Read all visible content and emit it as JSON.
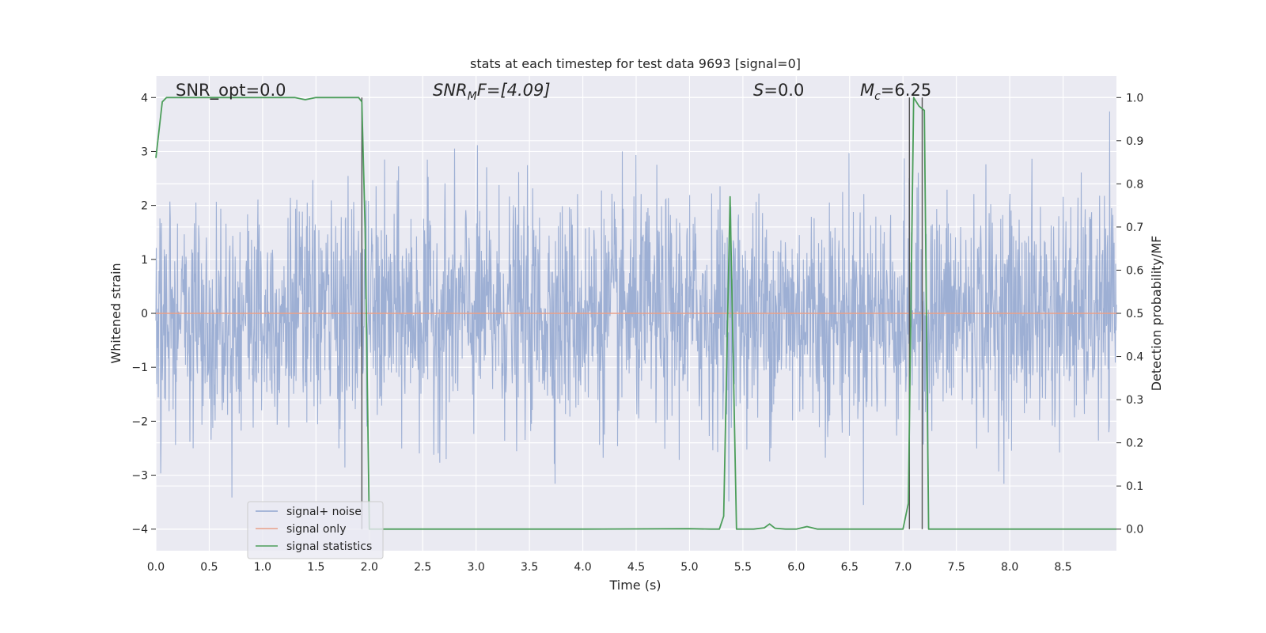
{
  "chart_data": {
    "type": "line",
    "title": "stats at each timestep for test data 9693 [signal=0]",
    "xlabel": "Time (s)",
    "ylabel": "Whitened strain",
    "y2label": "Detection probability/MF",
    "xlim": [
      0.0,
      9.0
    ],
    "ylim": [
      -4.4,
      4.4
    ],
    "y2lim": [
      -0.05,
      1.05
    ],
    "x_ticks": [
      "0.0",
      "0.5",
      "1.0",
      "1.5",
      "2.0",
      "2.5",
      "3.0",
      "3.5",
      "4.0",
      "4.5",
      "5.0",
      "5.5",
      "6.0",
      "6.5",
      "7.0",
      "7.5",
      "8.0",
      "8.5"
    ],
    "y_ticks": [
      "4",
      "3",
      "2",
      "1",
      "0",
      "−1",
      "−2",
      "−3",
      "−4"
    ],
    "y2_ticks": [
      "1.0",
      "0.9",
      "0.8",
      "0.7",
      "0.6",
      "0.5",
      "0.4",
      "0.3",
      "0.2",
      "0.1",
      "0.0"
    ],
    "grid": true,
    "legend_position": "lower-left",
    "annotations": {
      "snr_opt": "SNR_opt=0.0",
      "snr_mf_sym": "SNR",
      "snr_mf_sub": "M",
      "snr_mf_rest": "F=[4.09]",
      "s_sym": "S",
      "s_rest": "=0.0",
      "mc_sym": "M",
      "mc_sub": "c",
      "mc_rest": "=6.25"
    },
    "vlines_x": [
      1.93,
      7.06,
      7.18
    ],
    "series": [
      {
        "name": "signal+ noise",
        "color": "#8fa5cf",
        "note": "dense noise trace, amplitude mostly within ±2.5, peaks near ±4"
      },
      {
        "name": "signal only",
        "color": "#e8a08a",
        "values_constant": 0.0
      },
      {
        "name": "signal statistics",
        "color": "#4c9e5a",
        "axis": "right",
        "x": [
          0.0,
          0.06,
          0.1,
          0.2,
          0.5,
          1.0,
          1.2,
          1.3,
          1.4,
          1.5,
          1.7,
          1.8,
          1.9,
          1.93,
          1.96,
          2.0,
          2.3,
          3.0,
          4.0,
          5.0,
          5.2,
          5.28,
          5.32,
          5.38,
          5.44,
          5.5,
          5.6,
          5.7,
          5.75,
          5.8,
          5.9,
          6.0,
          6.1,
          6.2,
          7.0,
          7.05,
          7.1,
          7.15,
          7.2,
          7.24,
          7.5,
          8.0,
          9.0
        ],
        "y": [
          0.86,
          0.99,
          1.0,
          1.0,
          1.0,
          1.0,
          1.0,
          1.0,
          0.995,
          1.0,
          1.0,
          1.0,
          1.0,
          0.99,
          0.7,
          0.0,
          0.0,
          0.0,
          0.0,
          0.001,
          0.0,
          0.0,
          0.03,
          0.77,
          0.0,
          0.0,
          0.0,
          0.003,
          0.012,
          0.002,
          0.0,
          0.0,
          0.006,
          0.0,
          0.0,
          0.06,
          1.0,
          0.98,
          0.97,
          0.0,
          0.0,
          0.0,
          0.0
        ]
      }
    ]
  }
}
